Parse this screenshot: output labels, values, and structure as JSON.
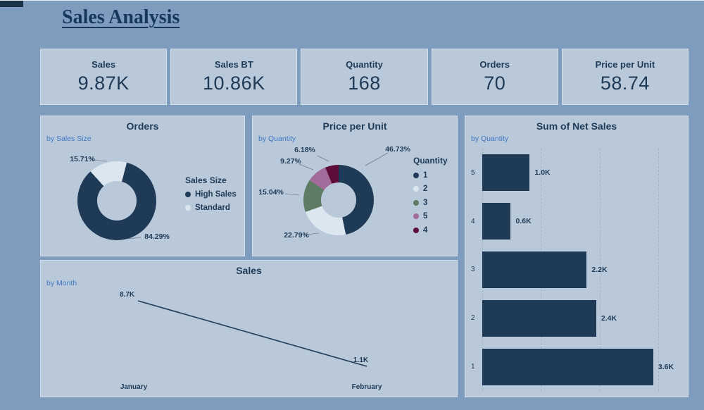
{
  "page": {
    "title": "Sales Analysis"
  },
  "kpis": [
    {
      "label": "Sales",
      "value": "9.87K"
    },
    {
      "label": "Sales BT",
      "value": "10.86K"
    },
    {
      "label": "Quantity",
      "value": "168"
    },
    {
      "label": "Orders",
      "value": "70"
    },
    {
      "label": "Price per Unit",
      "value": "58.74"
    }
  ],
  "colors": {
    "background": "#7e9dbe",
    "card": "#bac9da",
    "card_border": "#d5dfe9",
    "navy": "#1e3a56",
    "subtitle_blue": "#3f78c2",
    "light_segment": "#dce6ef",
    "green_segment": "#5e7b64",
    "purple_segment": "#a26b99",
    "maroon_segment": "#5e0d38"
  },
  "chart_data": [
    {
      "type": "pie",
      "title": "Orders",
      "subtitle": "by Sales Size",
      "legend_title": "Sales Size",
      "legend_position": "right",
      "start_angle": -42,
      "segments": [
        {
          "label": "Standard",
          "value": 15.71,
          "display": "15.71%",
          "color": "#dce6ef"
        },
        {
          "label": "High Sales",
          "value": 84.29,
          "display": "84.29%",
          "color": "#1e3a56"
        }
      ],
      "legend": [
        {
          "label": "High Sales",
          "color": "#1e3a56"
        },
        {
          "label": "Standard",
          "color": "#dce6ef"
        }
      ]
    },
    {
      "type": "pie",
      "title": "Price per Unit",
      "subtitle": "by Quantity",
      "legend_title": "Quantity",
      "legend_position": "right",
      "start_angle": 0,
      "segments": [
        {
          "label": "1",
          "value": 46.73,
          "display": "46.73%",
          "color": "#1e3a56"
        },
        {
          "label": "2",
          "value": 22.79,
          "display": "22.79%",
          "color": "#dce6ef"
        },
        {
          "label": "3",
          "value": 15.04,
          "display": "15.04%",
          "color": "#5e7b64"
        },
        {
          "label": "5",
          "value": 9.27,
          "display": "9.27%",
          "color": "#a26b99"
        },
        {
          "label": "4",
          "value": 6.18,
          "display": "6.18%",
          "color": "#5e0d38"
        }
      ],
      "legend": [
        {
          "label": "1",
          "color": "#1e3a56"
        },
        {
          "label": "2",
          "color": "#dce6ef"
        },
        {
          "label": "3",
          "color": "#5e7b64"
        },
        {
          "label": "5",
          "color": "#a26b99"
        },
        {
          "label": "4",
          "color": "#5e0d38"
        }
      ]
    },
    {
      "type": "bar",
      "title": "Sum of Net Sales",
      "subtitle": "by Quantity",
      "orientation": "horizontal",
      "categories": [
        "5",
        "4",
        "3",
        "2",
        "1"
      ],
      "values": [
        1.0,
        0.6,
        2.2,
        2.4,
        3.6
      ],
      "value_labels": [
        "1.0K",
        "0.6K",
        "2.2K",
        "2.4K",
        "3.6K"
      ],
      "bar_color": "#1e3a56",
      "xlim": [
        0,
        3.6
      ],
      "grid": "dashed-vertical"
    },
    {
      "type": "line",
      "title": "Sales",
      "subtitle": "by Month",
      "categories": [
        "January",
        "February"
      ],
      "values": [
        8.7,
        1.1
      ],
      "value_labels": [
        "8.7K",
        "1.1K"
      ],
      "line_color": "#1e3a56"
    }
  ]
}
